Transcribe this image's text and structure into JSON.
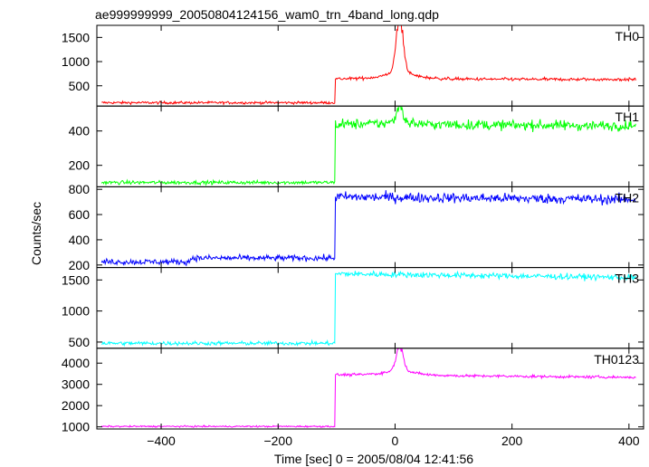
{
  "chart_data": {
    "type": "line",
    "title": "ae999999999_20050804124156_wam0_trn_4band_long.qdp",
    "xlabel": "Time [sec] 0 = 2005/08/04 12:41:56",
    "ylabel": "Counts/sec",
    "xlim": [
      -510,
      425
    ],
    "x_ticks": [
      -400,
      -200,
      0,
      200,
      400
    ],
    "x_tick_labels": [
      "−400",
      "−200",
      "0",
      "200",
      "400"
    ],
    "step_time": -103,
    "burst_time": 8,
    "panels": [
      {
        "name": "TH0",
        "color": "#ff0000",
        "ylim": [
          80,
          1750
        ],
        "y_ticks": [
          500,
          1000,
          1500
        ],
        "pre": 150,
        "pre_noise": 25,
        "post": 640,
        "post_end": 630,
        "post_noise": 30,
        "peak": 1700,
        "peak_width": 6,
        "peak_base": 220,
        "base_width": 25
      },
      {
        "name": "TH1",
        "color": "#00ff00",
        "ylim": [
          75,
          545
        ],
        "y_ticks": [
          200,
          400
        ],
        "pre": 100,
        "pre_noise": 10,
        "post": 440,
        "post_end": 430,
        "post_noise": 28,
        "peak": 530,
        "peak_width": 5,
        "peak_base": 25,
        "base_width": 20
      },
      {
        "name": "TH2",
        "color": "#0000ff",
        "ylim": [
          180,
          820
        ],
        "y_ticks": [
          200,
          400,
          600,
          800
        ],
        "pre": 225,
        "pre_late": 255,
        "pre_change": -350,
        "pre_noise": 22,
        "post": 740,
        "post_end": 720,
        "post_noise": 38,
        "peak": 0,
        "peak_width": 5,
        "peak_base": 0,
        "base_width": 20
      },
      {
        "name": "TH3",
        "color": "#00ffff",
        "ylim": [
          400,
          1700
        ],
        "y_ticks": [
          500,
          1000,
          1500
        ],
        "pre": 480,
        "pre_noise": 30,
        "post": 1600,
        "post_end": 1540,
        "post_noise": 45,
        "peak": 0,
        "peak_width": 5,
        "peak_base": 0,
        "base_width": 20
      },
      {
        "name": "TH0123",
        "color": "#ff00ff",
        "ylim": [
          900,
          4700
        ],
        "y_ticks": [
          1000,
          2000,
          3000,
          4000
        ],
        "pre": 1020,
        "pre_noise": 35,
        "post": 3450,
        "post_end": 3330,
        "post_noise": 60,
        "peak": 4500,
        "peak_width": 6,
        "peak_base": 350,
        "base_width": 25
      }
    ]
  }
}
